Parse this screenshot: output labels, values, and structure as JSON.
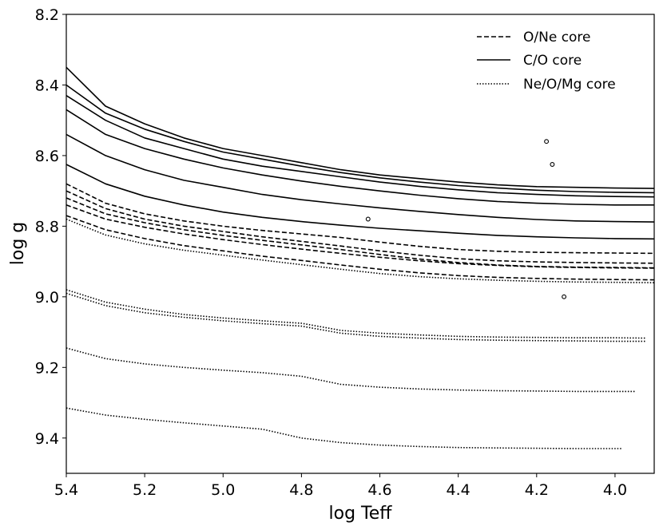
{
  "chart_data": {
    "type": "line",
    "title": "",
    "xlabel": "log Teff",
    "ylabel": "log g",
    "xlim": [
      5.4,
      3.9
    ],
    "ylim": [
      9.5,
      8.2
    ],
    "x_inverted": true,
    "y_inverted": true,
    "grid": false,
    "legend_position": "top-right",
    "xticks": [
      5.4,
      5.2,
      5.0,
      4.8,
      4.6,
      4.4,
      4.2,
      4.0
    ],
    "xtick_labels": [
      "5.4",
      "5.2",
      "5.0",
      "4.8",
      "4.6",
      "4.4",
      "4.2",
      "4.0"
    ],
    "yticks": [
      8.2,
      8.4,
      8.6,
      8.8,
      9.0,
      9.2,
      9.4
    ],
    "ytick_labels": [
      "8.2",
      "8.4",
      "8.6",
      "8.8",
      "9.0",
      "9.2",
      "9.4"
    ],
    "legend": [
      {
        "label": "O/Ne core",
        "style": "dashed"
      },
      {
        "label": "C/O core",
        "style": "solid"
      },
      {
        "label": "Ne/O/Mg core",
        "style": "dotted"
      }
    ],
    "series": [
      {
        "name": "C/O core",
        "style": "solid",
        "x": [
          5.4,
          5.3,
          5.2,
          5.1,
          5.0,
          4.9,
          4.8,
          4.7,
          4.6,
          4.5,
          4.4,
          4.3,
          4.2,
          4.1,
          4.0,
          3.9
        ],
        "y": [
          8.35,
          8.46,
          8.51,
          8.55,
          8.58,
          8.6,
          8.62,
          8.64,
          8.655,
          8.665,
          8.675,
          8.683,
          8.688,
          8.69,
          8.692,
          8.693
        ]
      },
      {
        "name": "C/O core",
        "style": "solid",
        "x": [
          5.4,
          5.3,
          5.2,
          5.1,
          5.0,
          4.9,
          4.8,
          4.7,
          4.6,
          4.5,
          4.4,
          4.3,
          4.2,
          4.1,
          4.0,
          3.9
        ],
        "y": [
          8.4,
          8.48,
          8.525,
          8.56,
          8.59,
          8.61,
          8.63,
          8.648,
          8.663,
          8.675,
          8.685,
          8.692,
          8.698,
          8.702,
          8.704,
          8.705
        ]
      },
      {
        "name": "C/O core",
        "style": "solid",
        "x": [
          5.4,
          5.3,
          5.2,
          5.1,
          5.0,
          4.9,
          4.8,
          4.7,
          4.6,
          4.5,
          4.4,
          4.3,
          4.2,
          4.1,
          4.0,
          3.9
        ],
        "y": [
          8.43,
          8.5,
          8.55,
          8.58,
          8.61,
          8.63,
          8.645,
          8.66,
          8.675,
          8.687,
          8.697,
          8.705,
          8.71,
          8.714,
          8.716,
          8.717
        ]
      },
      {
        "name": "C/O core",
        "style": "solid",
        "x": [
          5.4,
          5.3,
          5.2,
          5.1,
          5.0,
          4.9,
          4.8,
          4.7,
          4.6,
          4.5,
          4.4,
          4.3,
          4.2,
          4.1,
          4.0,
          3.9
        ],
        "y": [
          8.47,
          8.54,
          8.58,
          8.61,
          8.635,
          8.655,
          8.672,
          8.687,
          8.7,
          8.712,
          8.722,
          8.73,
          8.735,
          8.738,
          8.74,
          8.74
        ]
      },
      {
        "name": "C/O core",
        "style": "solid",
        "x": [
          5.4,
          5.3,
          5.2,
          5.1,
          5.0,
          4.9,
          4.8,
          4.7,
          4.6,
          4.5,
          4.4,
          4.3,
          4.2,
          4.1,
          4.0,
          3.9
        ],
        "y": [
          8.54,
          8.6,
          8.64,
          8.67,
          8.69,
          8.71,
          8.725,
          8.737,
          8.748,
          8.758,
          8.767,
          8.775,
          8.781,
          8.785,
          8.787,
          8.788
        ]
      },
      {
        "name": "C/O core",
        "style": "solid",
        "x": [
          5.4,
          5.3,
          5.2,
          5.1,
          5.0,
          4.9,
          4.8,
          4.7,
          4.6,
          4.5,
          4.4,
          4.3,
          4.2,
          4.1,
          4.0,
          3.9
        ],
        "y": [
          8.625,
          8.68,
          8.715,
          8.74,
          8.76,
          8.775,
          8.787,
          8.797,
          8.806,
          8.813,
          8.82,
          8.826,
          8.83,
          8.833,
          8.835,
          8.836
        ]
      },
      {
        "name": "O/Ne core",
        "style": "dashed",
        "x": [
          5.4,
          5.3,
          5.2,
          5.1,
          5.0,
          4.9,
          4.8,
          4.7,
          4.6,
          4.5,
          4.4,
          4.3,
          4.2,
          4.1,
          4.0,
          3.9
        ],
        "y": [
          8.68,
          8.735,
          8.765,
          8.785,
          8.8,
          8.812,
          8.822,
          8.832,
          8.845,
          8.857,
          8.866,
          8.871,
          8.874,
          8.875,
          8.876,
          8.877
        ]
      },
      {
        "name": "O/Ne core",
        "style": "dashed",
        "x": [
          5.4,
          5.3,
          5.2,
          5.1,
          5.0,
          4.9,
          4.8,
          4.7,
          4.6,
          4.5,
          4.4,
          4.3,
          4.2,
          4.1,
          4.0,
          3.9
        ],
        "y": [
          8.7,
          8.75,
          8.78,
          8.8,
          8.815,
          8.83,
          8.843,
          8.856,
          8.87,
          8.882,
          8.892,
          8.898,
          8.901,
          8.903,
          8.904,
          8.905
        ]
      },
      {
        "name": "O/Ne core",
        "style": "dashed",
        "x": [
          5.4,
          5.3,
          5.2,
          5.1,
          5.0,
          4.9,
          4.8,
          4.7,
          4.6,
          4.5,
          4.4,
          4.3,
          4.2,
          4.1,
          4.0,
          3.9
        ],
        "y": [
          8.72,
          8.765,
          8.79,
          8.81,
          8.826,
          8.84,
          8.853,
          8.866,
          8.88,
          8.893,
          8.903,
          8.91,
          8.914,
          8.916,
          8.917,
          8.918
        ]
      },
      {
        "name": "O/Ne core",
        "style": "dashed",
        "x": [
          5.4,
          5.3,
          5.2,
          5.1,
          5.0,
          4.9,
          4.8,
          4.7,
          4.6,
          4.5,
          4.4,
          4.3,
          4.2,
          4.1,
          4.0,
          3.9
        ],
        "y": [
          8.74,
          8.78,
          8.803,
          8.822,
          8.838,
          8.852,
          8.865,
          8.877,
          8.888,
          8.898,
          8.906,
          8.911,
          8.915,
          8.917,
          8.918,
          8.919
        ]
      },
      {
        "name": "O/Ne core",
        "style": "dashed",
        "x": [
          5.4,
          5.3,
          5.2,
          5.1,
          5.0,
          4.9,
          4.8,
          4.7,
          4.6,
          4.5,
          4.4,
          4.3,
          4.2,
          4.1,
          4.0,
          3.9
        ],
        "y": [
          8.77,
          8.81,
          8.835,
          8.855,
          8.87,
          8.885,
          8.897,
          8.91,
          8.922,
          8.932,
          8.94,
          8.945,
          8.948,
          8.95,
          8.951,
          8.952
        ]
      },
      {
        "name": "Ne/O/Mg core",
        "style": "dotted",
        "x": [
          5.4,
          5.3,
          5.2,
          5.1,
          5.0,
          4.9,
          4.8,
          4.7,
          4.6,
          4.5,
          4.4,
          4.3,
          4.2,
          4.1,
          4.0,
          3.9
        ],
        "y": [
          8.78,
          8.825,
          8.85,
          8.868,
          8.882,
          8.896,
          8.909,
          8.922,
          8.934,
          8.943,
          8.949,
          8.953,
          8.956,
          8.958,
          8.959,
          8.96
        ]
      },
      {
        "name": "Ne/O/Mg core",
        "style": "dotted",
        "x": [
          5.4,
          5.3,
          5.2,
          5.1,
          5.0,
          4.9,
          4.8,
          4.7,
          4.6,
          4.5,
          4.4,
          4.3,
          4.2,
          4.1,
          4.0,
          3.92
        ],
        "y": [
          8.98,
          9.015,
          9.035,
          9.05,
          9.06,
          9.068,
          9.075,
          9.095,
          9.103,
          9.108,
          9.112,
          9.114,
          9.115,
          9.116,
          9.116,
          9.117
        ]
      },
      {
        "name": "Ne/O/Mg core",
        "style": "dotted",
        "x": [
          5.4,
          5.3,
          5.2,
          5.1,
          5.0,
          4.9,
          4.8,
          4.7,
          4.6,
          4.5,
          4.4,
          4.3,
          4.2,
          4.1,
          4.0,
          3.92
        ],
        "y": [
          8.99,
          9.025,
          9.045,
          9.058,
          9.068,
          9.076,
          9.083,
          9.103,
          9.112,
          9.117,
          9.121,
          9.123,
          9.124,
          9.125,
          9.126,
          9.126
        ]
      },
      {
        "name": "Ne/O/Mg core",
        "style": "dotted",
        "x": [
          5.4,
          5.3,
          5.2,
          5.1,
          5.0,
          4.9,
          4.8,
          4.7,
          4.6,
          4.5,
          4.4,
          4.3,
          4.2,
          4.1,
          4.0,
          3.95
        ],
        "y": [
          9.145,
          9.175,
          9.19,
          9.2,
          9.208,
          9.215,
          9.225,
          9.248,
          9.256,
          9.261,
          9.264,
          9.266,
          9.267,
          9.268,
          9.268,
          9.268
        ]
      },
      {
        "name": "Ne/O/Mg core",
        "style": "dotted",
        "x": [
          5.4,
          5.3,
          5.2,
          5.1,
          5.0,
          4.9,
          4.88,
          4.8,
          4.7,
          4.6,
          4.5,
          4.4,
          4.3,
          4.2,
          4.1,
          4.0,
          3.98
        ],
        "y": [
          9.315,
          9.335,
          9.347,
          9.357,
          9.366,
          9.375,
          9.38,
          9.4,
          9.413,
          9.42,
          9.424,
          9.427,
          9.428,
          9.429,
          9.43,
          9.43,
          9.43
        ]
      }
    ],
    "points": [
      {
        "x": 4.63,
        "y": 8.78
      },
      {
        "x": 4.175,
        "y": 8.56
      },
      {
        "x": 4.16,
        "y": 8.625
      },
      {
        "x": 4.13,
        "y": 9.0
      }
    ]
  }
}
